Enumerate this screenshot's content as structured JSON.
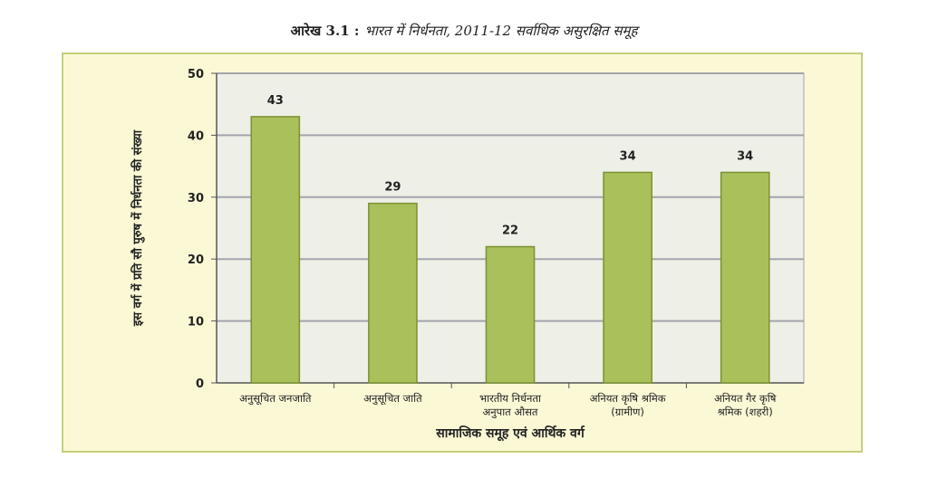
{
  "caption": {
    "prefix": "आरेख 3.1 :",
    "text": "भारत में निर्धनता, 2011-12 सर्वाधिक असुरक्षित समूह"
  },
  "colors": {
    "panel_bg": "#fbf8d6",
    "panel_border": "#c6cf7a",
    "plot_bg": "#eeefe6",
    "grid": "#a3a5ad",
    "bar_fill": "#a9c05b",
    "bar_stroke": "#7b9232"
  },
  "chart_data": {
    "type": "bar",
    "title": "",
    "xlabel": "सामाजिक समूह एवं आर्थिक वर्ग",
    "ylabel": "इस वर्ग में प्रति सौ पुरुष में निर्धनता की संख्या",
    "ylim": [
      0,
      50
    ],
    "yticks": [
      0,
      10,
      20,
      30,
      40,
      50
    ],
    "grid": true,
    "categories": [
      [
        "अनुसूचित जनजाति"
      ],
      [
        "अनुसूचित जाति"
      ],
      [
        "भारतीय निर्धनता",
        "अनुपात औसत"
      ],
      [
        "अनियत कृषि श्रमिक",
        "(ग्रामीण)"
      ],
      [
        "अनियत गैर कृषि",
        "श्रमिक (शहरी)"
      ]
    ],
    "values": [
      43,
      29,
      22,
      34,
      34
    ],
    "data_labels": [
      "43",
      "29",
      "22",
      "34",
      "34"
    ]
  }
}
